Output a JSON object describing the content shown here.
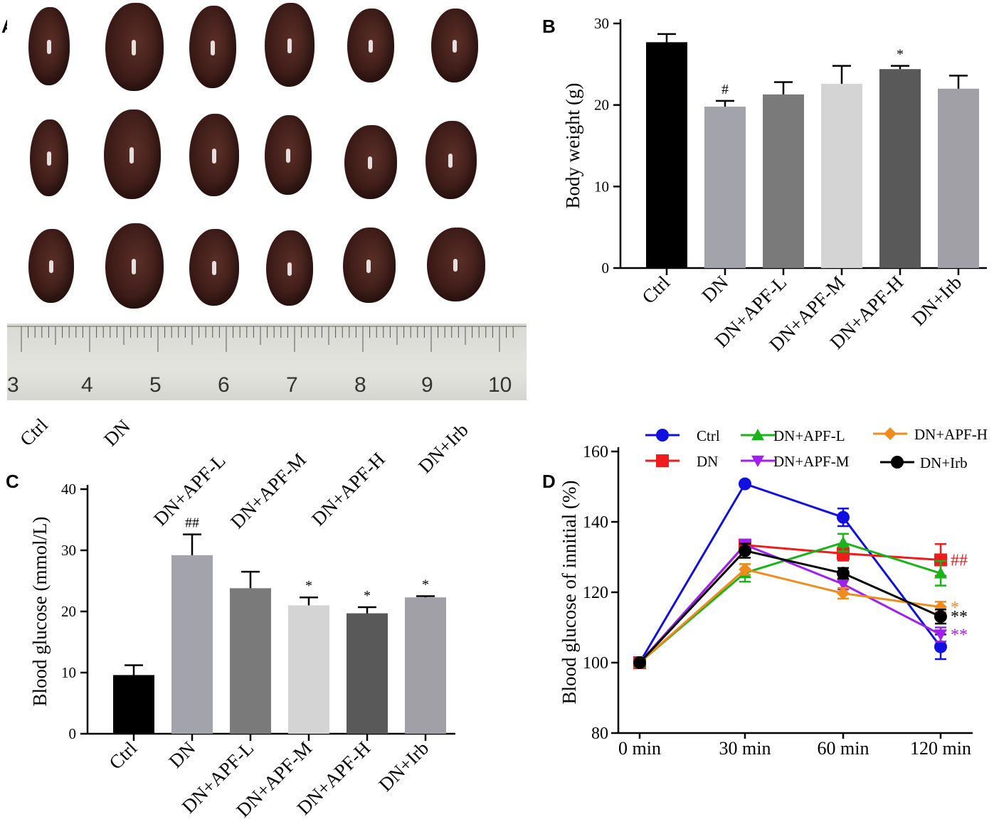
{
  "panels": {
    "a": "A",
    "b": "B",
    "c": "C",
    "d": "D"
  },
  "photo": {
    "ruler_numbers": [
      "3",
      "4",
      "5",
      "6",
      "7",
      "8",
      "9",
      "10"
    ],
    "group_labels": [
      "Ctrl",
      "DN",
      "DN+APF-L",
      "DN+APF-M",
      "DN+APF-H",
      "DN+Irb"
    ]
  },
  "chart_data": [
    {
      "panel": "B",
      "type": "bar",
      "categories": [
        "Ctrl",
        "DN",
        "DN+APF-L",
        "DN+APF-M",
        "DN+APF-H",
        "DN+Irb"
      ],
      "values": [
        27.7,
        19.8,
        21.3,
        22.6,
        24.4,
        22.0
      ],
      "errors": [
        1.0,
        0.7,
        1.5,
        2.2,
        0.4,
        1.6
      ],
      "colors": [
        "#000000",
        "#a3a3ab",
        "#7a7a7a",
        "#d4d4d4",
        "#595959",
        "#a0a0a6"
      ],
      "annotations": [
        "",
        "#",
        "",
        "",
        "*",
        ""
      ],
      "ylabel": "Body weight (g)",
      "ylim": [
        0,
        30
      ],
      "yticks": [
        "0",
        "10",
        "20",
        "30"
      ]
    },
    {
      "panel": "C",
      "type": "bar",
      "categories": [
        "Ctrl",
        "DN",
        "DN+APF-L",
        "DN+APF-M",
        "DN+APF-H",
        "DN+Irb"
      ],
      "values": [
        9.6,
        29.2,
        23.8,
        21.0,
        19.7,
        22.3
      ],
      "errors": [
        1.6,
        3.4,
        2.7,
        1.3,
        1.0,
        0.2
      ],
      "colors": [
        "#000000",
        "#a3a3ab",
        "#7a7a7a",
        "#d4d4d4",
        "#595959",
        "#a0a0a6"
      ],
      "annotations": [
        "",
        "##",
        "",
        "*",
        "*",
        "*"
      ],
      "ylabel": "Blood glucose (mmol/L)",
      "ylim": [
        0,
        40
      ],
      "yticks": [
        "0",
        "10",
        "20",
        "30",
        "40"
      ]
    },
    {
      "panel": "D",
      "type": "line",
      "x": [
        "0 min",
        "30 min",
        "60 min",
        "120 min"
      ],
      "ylabel": "Blood glucose of innitial (%)",
      "ylim": [
        80,
        160
      ],
      "yticks": [
        "80",
        "100",
        "120",
        "140",
        "160"
      ],
      "series": [
        {
          "name": "Ctrl",
          "color": "#1010e0",
          "marker": "circle",
          "values": [
            100,
            150.8,
            141.3,
            104.5
          ],
          "errors": [
            0,
            0,
            2.5,
            3.5
          ],
          "annotation": ""
        },
        {
          "name": "DN",
          "color": "#ee1c1c",
          "marker": "square",
          "values": [
            100,
            133.4,
            131.0,
            129.2
          ],
          "errors": [
            0,
            1.0,
            2.0,
            4.5
          ],
          "annotation": "##"
        },
        {
          "name": "DN+APF-L",
          "color": "#19b31a",
          "marker": "triangle-up",
          "values": [
            100,
            125.5,
            134.1,
            125.4
          ],
          "errors": [
            0,
            2.5,
            2.5,
            3.5
          ],
          "annotation": ""
        },
        {
          "name": "DN+APF-M",
          "color": "#a020f0",
          "marker": "triangle-down",
          "values": [
            100,
            133.5,
            122.3,
            108.0
          ],
          "errors": [
            0,
            1.5,
            1.5,
            2.0
          ],
          "annotation": "**"
        },
        {
          "name": "DN+APF-H",
          "color": "#f08c1e",
          "marker": "diamond",
          "values": [
            100,
            126.5,
            119.7,
            115.8
          ],
          "errors": [
            0,
            1.5,
            1.5,
            1.5
          ],
          "annotation": "*"
        },
        {
          "name": "DN+Irb",
          "color": "#000000",
          "marker": "circle",
          "values": [
            100,
            131.8,
            125.4,
            113.1
          ],
          "errors": [
            0,
            2.0,
            1.5,
            2.0
          ],
          "annotation": "**"
        }
      ]
    }
  ]
}
